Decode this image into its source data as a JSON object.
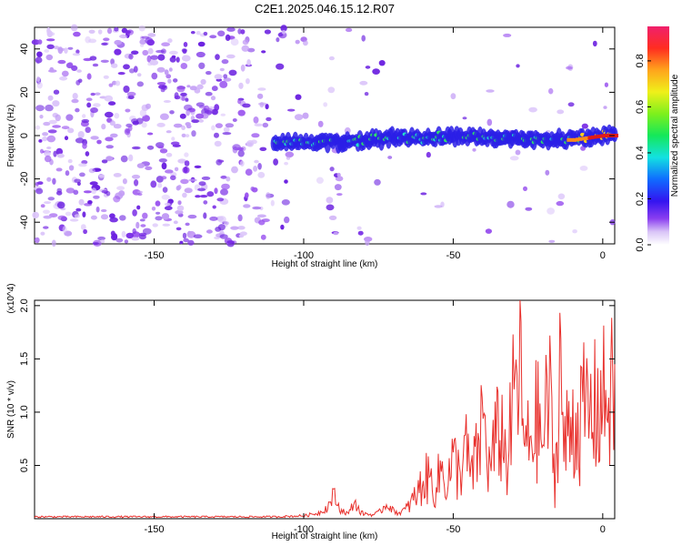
{
  "title": "C2E1.2025.046.15.12.R07",
  "colors": {
    "spectrogram_dots": "#7a2ee6",
    "ridge_low": "#2a1ee6",
    "ridge_mid": "#22e0c8",
    "ridge_high": "#e01a1a",
    "snr_line": "#e8302c",
    "axis": "#000000"
  },
  "chart_data": [
    {
      "type": "heatmap",
      "title": "C2E1.2025.046.15.12.R07",
      "xlabel": "Height of straight line (km)",
      "ylabel": "Frequency (Hz)",
      "xlim": [
        -190,
        4
      ],
      "ylim": [
        -50,
        50
      ],
      "x_ticks": [
        -150,
        -100,
        -50,
        0
      ],
      "y_ticks": [
        -40,
        -20,
        0,
        20,
        40
      ],
      "ridge": {
        "x": [
          -110,
          -100,
          -90,
          -80,
          -70,
          -60,
          -50,
          -40,
          -30,
          -20,
          -10,
          0,
          4
        ],
        "frequency_hz": [
          -3,
          -3,
          -3,
          -2,
          -1,
          -1,
          0,
          -1,
          -1,
          -2,
          -2,
          0,
          0
        ]
      },
      "colorbar": {
        "label": "Normalized spectral amplitude",
        "range": [
          0,
          0.95
        ],
        "ticks": [
          0.0,
          0.2,
          0.4,
          0.6,
          0.8
        ],
        "tick_labels": [
          "0.0",
          "0.2",
          "0.4",
          "0.6",
          "0.8"
        ]
      }
    },
    {
      "type": "line",
      "xlabel": "Height of straight line (km)",
      "ylabel": "SNR (10 * v/v)",
      "y_multiplier": "(x10^4)",
      "xlim": [
        -190,
        4
      ],
      "ylim": [
        0,
        2.05
      ],
      "x_ticks": [
        -150,
        -100,
        -50,
        0
      ],
      "y_ticks": [
        0.5,
        1.0,
        1.5,
        2.0
      ],
      "y_tick_labels": [
        "0.5",
        "1.0",
        "1.5",
        "2.0"
      ],
      "series": [
        {
          "x": [
            -190,
            -150,
            -110,
            -100,
            -95,
            -92,
            -90,
            -88,
            -85,
            -83,
            -81,
            -79,
            -77,
            -75,
            -72,
            -70,
            -68,
            -66,
            -64,
            -62,
            -60,
            -58,
            -56,
            -54,
            -52,
            -50,
            -48,
            -46,
            -44,
            -42,
            -40,
            -38,
            -36,
            -34,
            -32,
            -30,
            -28,
            -26,
            -24,
            -22,
            -20,
            -18,
            -16,
            -14,
            -13,
            -12,
            -10,
            -8,
            -6,
            -4,
            -2,
            0,
            2,
            4
          ],
          "values": [
            0.02,
            0.02,
            0.02,
            0.03,
            0.06,
            0.12,
            0.25,
            0.1,
            0.05,
            0.18,
            0.06,
            0.05,
            0.04,
            0.06,
            0.16,
            0.08,
            0.06,
            0.1,
            0.2,
            0.3,
            0.45,
            0.5,
            0.35,
            0.6,
            0.45,
            0.7,
            0.55,
            0.85,
            0.5,
            0.75,
            1.25,
            0.6,
            0.9,
            1.1,
            0.65,
            1.35,
            1.9,
            0.8,
            1.0,
            1.2,
            0.9,
            1.6,
            0.4,
            2.1,
            0.7,
            1.0,
            1.2,
            1.15,
            1.3,
            1.25,
            1.35,
            1.4,
            1.5,
            1.45
          ]
        }
      ]
    }
  ]
}
